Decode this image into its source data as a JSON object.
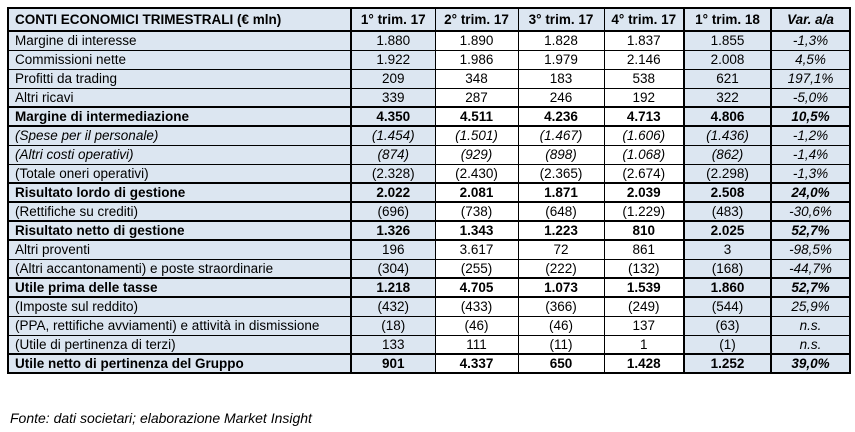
{
  "chart_data": {
    "type": "table",
    "title": "CONTI ECONOMICI TRIMESTRALI (€ mln)",
    "columns": [
      "1° trim. 17",
      "2° trim. 17",
      "3° trim. 17",
      "4° trim. 17",
      "1° trim. 18",
      "Var. a/a"
    ],
    "rows": [
      {
        "label": "Margine di interesse",
        "emphasis": "normal",
        "values": [
          "1.880",
          "1.890",
          "1.828",
          "1.837",
          "1.855",
          "-1,3%"
        ]
      },
      {
        "label": "Commissioni nette",
        "emphasis": "normal",
        "values": [
          "1.922",
          "1.986",
          "1.979",
          "2.146",
          "2.008",
          "4,5%"
        ]
      },
      {
        "label": "Profitti da trading",
        "emphasis": "normal",
        "values": [
          "209",
          "348",
          "183",
          "538",
          "621",
          "197,1%"
        ]
      },
      {
        "label": "Altri ricavi",
        "emphasis": "normal",
        "values": [
          "339",
          "287",
          "246",
          "192",
          "322",
          "-5,0%"
        ]
      },
      {
        "label": "Margine di intermediazione",
        "emphasis": "bold",
        "values": [
          "4.350",
          "4.511",
          "4.236",
          "4.713",
          "4.806",
          "10,5%"
        ]
      },
      {
        "label": "(Spese per il personale)",
        "emphasis": "italic",
        "values": [
          "(1.454)",
          "(1.501)",
          "(1.467)",
          "(1.606)",
          "(1.436)",
          "-1,2%"
        ]
      },
      {
        "label": "(Altri costi operativi)",
        "emphasis": "italic",
        "values": [
          "(874)",
          "(929)",
          "(898)",
          "(1.068)",
          "(862)",
          "-1,4%"
        ]
      },
      {
        "label": "(Totale oneri operativi)",
        "emphasis": "normal",
        "values": [
          "(2.328)",
          "(2.430)",
          "(2.365)",
          "(2.674)",
          "(2.298)",
          "-1,3%"
        ]
      },
      {
        "label": "Risultato lordo di gestione",
        "emphasis": "bold",
        "values": [
          "2.022",
          "2.081",
          "1.871",
          "2.039",
          "2.508",
          "24,0%"
        ]
      },
      {
        "label": "(Rettifiche su crediti)",
        "emphasis": "normal",
        "values": [
          "(696)",
          "(738)",
          "(648)",
          "(1.229)",
          "(483)",
          "-30,6%"
        ]
      },
      {
        "label": "Risultato netto di gestione",
        "emphasis": "bold",
        "values": [
          "1.326",
          "1.343",
          "1.223",
          "810",
          "2.025",
          "52,7%"
        ]
      },
      {
        "label": "Altri proventi",
        "emphasis": "normal",
        "values": [
          "196",
          "3.617",
          "72",
          "861",
          "3",
          "-98,5%"
        ]
      },
      {
        "label": "(Altri accantonamenti) e poste straordinarie",
        "emphasis": "normal",
        "values": [
          "(304)",
          "(255)",
          "(222)",
          "(132)",
          "(168)",
          "-44,7%"
        ]
      },
      {
        "label": "Utile prima delle tasse",
        "emphasis": "bold",
        "values": [
          "1.218",
          "4.705",
          "1.073",
          "1.539",
          "1.860",
          "52,7%"
        ]
      },
      {
        "label": "(Imposte sul reddito)",
        "emphasis": "normal",
        "values": [
          "(432)",
          "(433)",
          "(366)",
          "(249)",
          "(544)",
          "25,9%"
        ]
      },
      {
        "label": "(PPA, rettifiche avviamenti) e attività in dismissione",
        "emphasis": "normal",
        "values": [
          "(18)",
          "(46)",
          "(46)",
          "137",
          "(63)",
          "n.s."
        ]
      },
      {
        "label": "(Utile di pertinenza di terzi)",
        "emphasis": "normal",
        "values": [
          "133",
          "111",
          "(11)",
          "1",
          "(1)",
          "n.s."
        ]
      },
      {
        "label": "Utile netto di pertinenza del Gruppo",
        "emphasis": "bold",
        "values": [
          "901",
          "4.337",
          "650",
          "1.428",
          "1.252",
          "39,0%"
        ]
      }
    ],
    "source_note": "Fonte: dati societari; elaborazione Market Insight",
    "layout": {
      "legend_position": "none",
      "grid": "all-borders",
      "highlighted_columns": [
        "row-label",
        "1° trim. 17",
        "1° trim. 18",
        "Var. a/a"
      ],
      "highlight_bg": "#dce6f1",
      "plain_bg": "#ffffff",
      "border_color": "#000000",
      "text_color": "#000000"
    }
  }
}
